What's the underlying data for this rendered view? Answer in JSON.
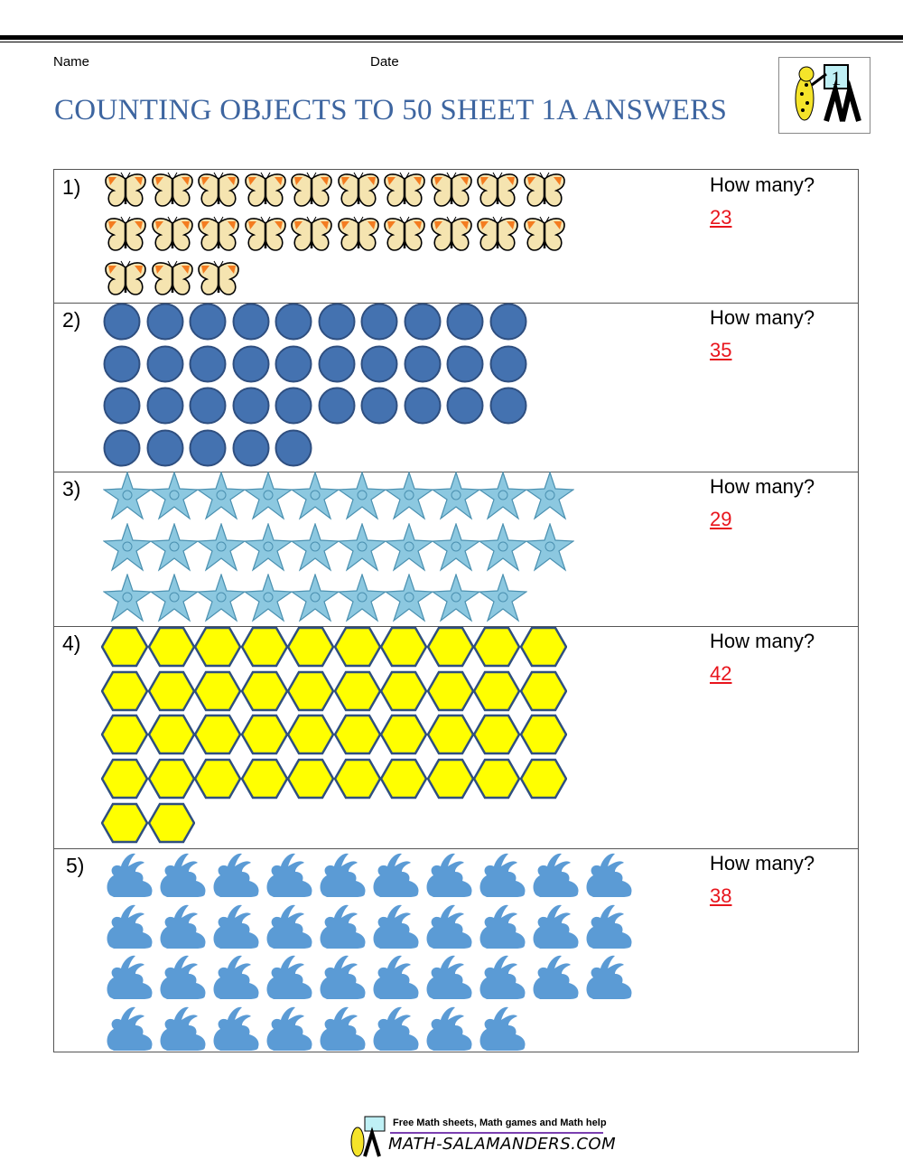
{
  "header": {
    "name_label": "Name",
    "date_label": "Date",
    "title": "COUNTING OBJECTS TO 50 SHEET 1A ANSWERS",
    "logo_text": "1"
  },
  "questions": [
    {
      "number": "1)",
      "object": "butterfly-icon",
      "count": 23,
      "prompt": "How many?",
      "answer": "23"
    },
    {
      "number": "2)",
      "object": "circle-icon",
      "count": 35,
      "prompt": "How many?",
      "answer": "35"
    },
    {
      "number": "3)",
      "object": "starfish-icon",
      "count": 29,
      "prompt": "How many?",
      "answer": "29"
    },
    {
      "number": "4)",
      "object": "hexagon-icon",
      "count": 42,
      "prompt": "How many?",
      "answer": "42"
    },
    {
      "number": "5)",
      "object": "rabbit-icon",
      "count": 38,
      "prompt": "How many?",
      "answer": "38"
    }
  ],
  "colors": {
    "title": "#3d65a0",
    "answer": "#e8141c",
    "circle": "#4472b0",
    "starfish": "#8cc8e0",
    "hexagon": "#ffff00",
    "rabbit": "#5b9bd5",
    "butterfly": "#f5e4b0"
  },
  "footer": {
    "tagline": "Free Math sheets, Math games and Math help",
    "site": "MATH-SALAMANDERS.COM"
  }
}
